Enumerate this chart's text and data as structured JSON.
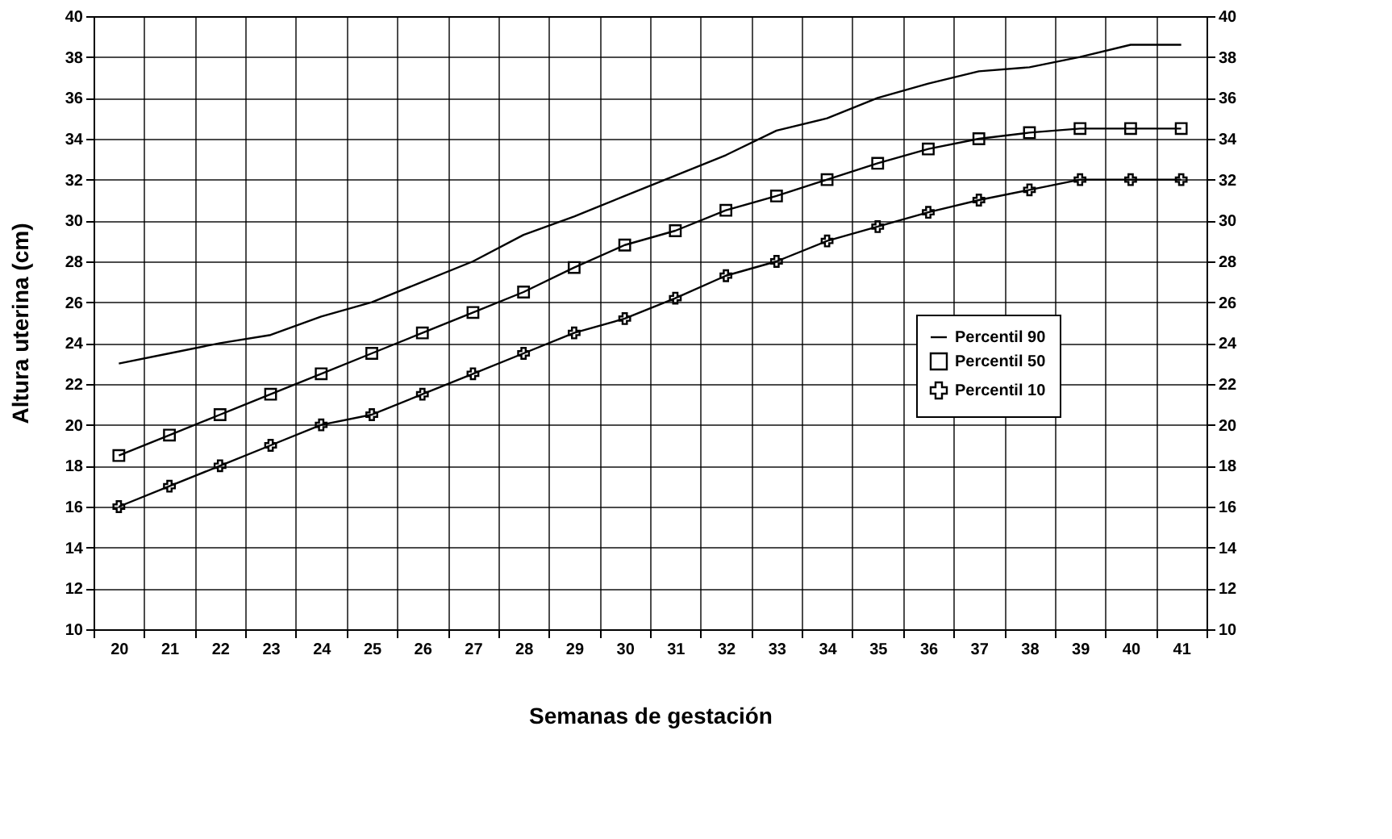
{
  "chart_data": {
    "type": "line",
    "xlabel": "Semanas de gestación",
    "ylabel": "Altura uterina (cm)",
    "categories": [
      "20",
      "21",
      "22",
      "23",
      "24",
      "25",
      "26",
      "27",
      "28",
      "29",
      "30",
      "31",
      "32",
      "33",
      "34",
      "35",
      "36",
      "37",
      "38",
      "39",
      "40",
      "41"
    ],
    "series": [
      {
        "name": "Percentil 90",
        "color": "#000000",
        "marker": "none",
        "values": [
          23,
          23.5,
          24,
          24.4,
          25.3,
          26,
          27,
          28,
          29.3,
          30.2,
          31.2,
          32.2,
          33.2,
          34.4,
          35,
          36,
          36.7,
          37.3,
          37.5,
          38,
          38.6,
          38.6
        ]
      },
      {
        "name": "Percentil 50",
        "color": "#000000",
        "marker": "square",
        "values": [
          18.5,
          19.5,
          20.5,
          21.5,
          22.5,
          23.5,
          24.5,
          25.5,
          26.5,
          27.7,
          28.8,
          29.5,
          30.5,
          31.2,
          32,
          32.8,
          33.5,
          34,
          34.3,
          34.5,
          34.5,
          34.5
        ]
      },
      {
        "name": "Percentil 10",
        "color": "#000000",
        "marker": "cross",
        "values": [
          16,
          17,
          18,
          19,
          20,
          20.5,
          21.5,
          22.5,
          23.5,
          24.5,
          25.2,
          26.2,
          27.3,
          28,
          29,
          29.7,
          30.4,
          31,
          31.5,
          32,
          32,
          32
        ]
      }
    ],
    "ylim": [
      10,
      40
    ],
    "yticks": [
      10,
      12,
      14,
      16,
      18,
      20,
      22,
      24,
      26,
      28,
      30,
      32,
      34,
      36,
      38,
      40
    ],
    "y2lim": [
      10,
      40
    ],
    "y2ticks": [
      10,
      12,
      14,
      16,
      18,
      20,
      22,
      24,
      26,
      28,
      30,
      32,
      34,
      36,
      38,
      40
    ],
    "grid": true,
    "legend": "right",
    "line_style": "solid"
  }
}
